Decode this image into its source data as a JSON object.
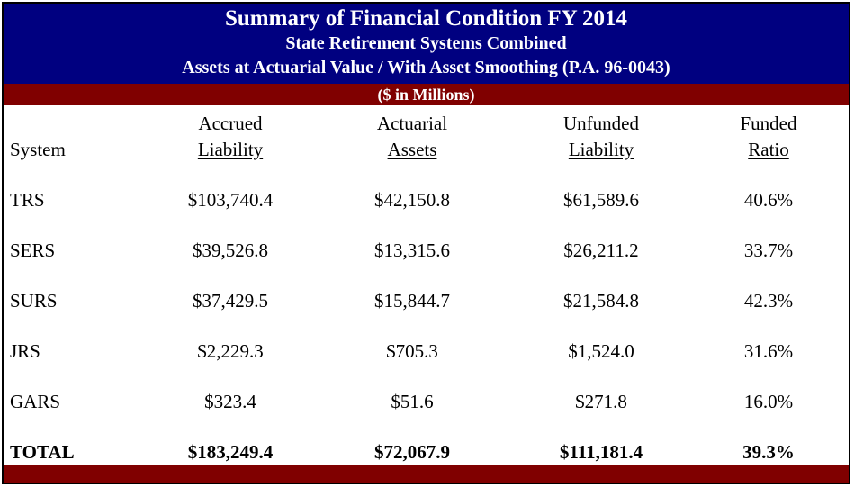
{
  "title": {
    "line1": "Summary of Financial Condition FY 2014",
    "line2": "State Retirement Systems Combined",
    "line3": "Assets at Actuarial Value / With Asset Smoothing (P.A. 96-0043)",
    "units": "($ in Millions)"
  },
  "headers": {
    "system": "System",
    "accrued_top": "Accrued",
    "accrued_bottom": "Liability",
    "actuarial_top": "Actuarial",
    "actuarial_bottom": "Assets",
    "unfunded_top": "Unfunded",
    "unfunded_bottom": "Liability",
    "funded_top": "Funded",
    "funded_bottom": "Ratio"
  },
  "rows": [
    {
      "system": "TRS",
      "accrued": "$103,740.4",
      "assets": "$42,150.8",
      "unfunded": "$61,589.6",
      "ratio": "40.6%"
    },
    {
      "system": "SERS",
      "accrued": "$39,526.8",
      "assets": "$13,315.6",
      "unfunded": "$26,211.2",
      "ratio": "33.7%"
    },
    {
      "system": "SURS",
      "accrued": "$37,429.5",
      "assets": "$15,844.7",
      "unfunded": "$21,584.8",
      "ratio": "42.3%"
    },
    {
      "system": "JRS",
      "accrued": "$2,229.3",
      "assets": "$705.3",
      "unfunded": "$1,524.0",
      "ratio": "31.6%"
    },
    {
      "system": "GARS",
      "accrued": "$323.4",
      "assets": "$51.6",
      "unfunded": "$271.8",
      "ratio": "16.0%"
    }
  ],
  "total": {
    "system": "TOTAL",
    "accrued": "$183,249.4",
    "assets": "$72,067.9",
    "unfunded": "$111,181.4",
    "ratio": "39.3%"
  },
  "colors": {
    "title_band": "#000080",
    "units_band": "#800000",
    "bottom_band": "#800000"
  }
}
